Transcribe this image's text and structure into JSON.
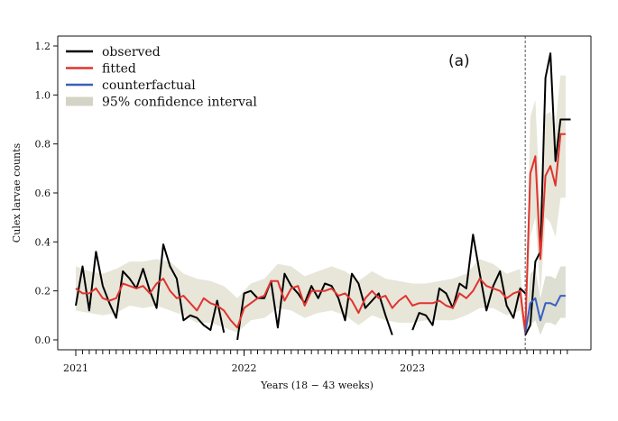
{
  "chart_data": {
    "type": "line",
    "panel_label": "(a)",
    "xlabel": "Years (18 − 43 weeks)",
    "ylabel": "Culex larvae counts",
    "ylim": [
      0,
      1.2
    ],
    "xlim": [
      2021.0,
      2023.98
    ],
    "yticks": [
      0.0,
      0.2,
      0.4,
      0.6,
      0.8,
      1.0,
      1.2
    ],
    "ytick_labels": [
      "0.0",
      "0.2",
      "0.4",
      "0.6",
      "0.8",
      "1.0",
      "1.2"
    ],
    "xticks": [
      2021,
      2022,
      2023
    ],
    "xtick_labels": [
      "2021",
      "2022",
      "2023"
    ],
    "intervention_x": 2023.67,
    "legend": {
      "position": "top-left",
      "entries": [
        {
          "label": "observed",
          "color": "#000000",
          "kind": "line"
        },
        {
          "label": "fitted",
          "color": "#e0332e",
          "kind": "line"
        },
        {
          "label": "counterfactual",
          "color": "#3a5fbf",
          "kind": "line"
        },
        {
          "label": "95% confidence interval",
          "color": "#d4d4c6",
          "kind": "band"
        }
      ]
    },
    "series": [
      {
        "name": "observed",
        "color": "#000000",
        "segments": [
          {
            "x": [
              2021.0,
              2021.04,
              2021.08,
              2021.12,
              2021.16,
              2021.2,
              2021.24,
              2021.28,
              2021.32,
              2021.36,
              2021.4,
              2021.44,
              2021.48,
              2021.52,
              2021.56,
              2021.6,
              2021.64,
              2021.68,
              2021.72,
              2021.76,
              2021.8,
              2021.84,
              2021.88
            ],
            "y": [
              0.14,
              0.3,
              0.12,
              0.36,
              0.22,
              0.15,
              0.09,
              0.28,
              0.25,
              0.21,
              0.29,
              0.2,
              0.13,
              0.39,
              0.3,
              0.25,
              0.08,
              0.1,
              0.09,
              0.06,
              0.04,
              0.16,
              0.03
            ]
          },
          {
            "x": [
              2021.96,
              2022.0,
              2022.04,
              2022.08,
              2022.12,
              2022.16,
              2022.2,
              2022.24,
              2022.28,
              2022.32,
              2022.36,
              2022.4,
              2022.44,
              2022.48,
              2022.52,
              2022.56,
              2022.6,
              2022.64,
              2022.68,
              2022.72,
              2022.76,
              2022.8,
              2022.84,
              2022.88
            ],
            "y": [
              0.0,
              0.19,
              0.2,
              0.17,
              0.17,
              0.24,
              0.05,
              0.27,
              0.22,
              0.19,
              0.15,
              0.22,
              0.17,
              0.23,
              0.22,
              0.17,
              0.08,
              0.27,
              0.23,
              0.13,
              0.16,
              0.19,
              0.1,
              0.02
            ]
          },
          {
            "x": [
              2023.0,
              2023.04,
              2023.08,
              2023.12,
              2023.16,
              2023.2,
              2023.24,
              2023.28,
              2023.32,
              2023.36,
              2023.4,
              2023.44,
              2023.48,
              2023.52,
              2023.56,
              2023.6,
              2023.64,
              2023.67
            ],
            "y": [
              0.04,
              0.11,
              0.1,
              0.06,
              0.21,
              0.19,
              0.13,
              0.23,
              0.21,
              0.43,
              0.27,
              0.12,
              0.22,
              0.28,
              0.14,
              0.09,
              0.21,
              0.19
            ]
          },
          {
            "x": [
              2023.67,
              2023.7,
              2023.73,
              2023.76,
              2023.79,
              2023.82,
              2023.85,
              2023.88,
              2023.91,
              2023.94
            ],
            "y": [
              0.02,
              0.06,
              0.32,
              0.36,
              1.07,
              1.17,
              0.73,
              0.9,
              0.9,
              0.9
            ]
          }
        ]
      },
      {
        "name": "fitted",
        "color": "#e0332e",
        "x": [
          2021.0,
          2021.04,
          2021.08,
          2021.12,
          2021.16,
          2021.2,
          2021.24,
          2021.28,
          2021.32,
          2021.36,
          2021.4,
          2021.44,
          2021.48,
          2021.52,
          2021.56,
          2021.6,
          2021.64,
          2021.68,
          2021.72,
          2021.76,
          2021.8,
          2021.84,
          2021.88,
          2021.92,
          2021.96,
          2022.0,
          2022.04,
          2022.08,
          2022.12,
          2022.16,
          2022.2,
          2022.24,
          2022.28,
          2022.32,
          2022.36,
          2022.4,
          2022.44,
          2022.48,
          2022.52,
          2022.56,
          2022.6,
          2022.64,
          2022.68,
          2022.72,
          2022.76,
          2022.8,
          2022.84,
          2022.88,
          2022.92,
          2022.96,
          2023.0,
          2023.04,
          2023.08,
          2023.12,
          2023.16,
          2023.2,
          2023.24,
          2023.28,
          2023.32,
          2023.36,
          2023.4,
          2023.44,
          2023.48,
          2023.52,
          2023.56,
          2023.6,
          2023.64,
          2023.67,
          2023.7,
          2023.73,
          2023.76,
          2023.79,
          2023.82,
          2023.85,
          2023.88,
          2023.91
        ],
        "y": [
          0.21,
          0.19,
          0.19,
          0.21,
          0.17,
          0.16,
          0.17,
          0.23,
          0.22,
          0.21,
          0.22,
          0.19,
          0.23,
          0.25,
          0.2,
          0.17,
          0.18,
          0.15,
          0.12,
          0.17,
          0.15,
          0.14,
          0.12,
          0.08,
          0.05,
          0.13,
          0.15,
          0.17,
          0.18,
          0.24,
          0.24,
          0.16,
          0.21,
          0.22,
          0.14,
          0.2,
          0.2,
          0.2,
          0.21,
          0.18,
          0.19,
          0.16,
          0.11,
          0.17,
          0.2,
          0.17,
          0.18,
          0.13,
          0.16,
          0.18,
          0.14,
          0.15,
          0.15,
          0.15,
          0.16,
          0.14,
          0.13,
          0.19,
          0.17,
          0.2,
          0.25,
          0.22,
          0.21,
          0.2,
          0.17,
          0.19,
          0.2,
          0.03,
          0.68,
          0.75,
          0.33,
          0.67,
          0.71,
          0.63,
          0.84,
          0.84
        ]
      },
      {
        "name": "counterfactual",
        "color": "#3a5fbf",
        "x": [
          2023.67,
          2023.7,
          2023.73,
          2023.76,
          2023.79,
          2023.82,
          2023.85,
          2023.88,
          2023.91
        ],
        "y": [
          0.03,
          0.15,
          0.17,
          0.08,
          0.15,
          0.15,
          0.14,
          0.18,
          0.18
        ]
      }
    ],
    "confidence_band": {
      "name": "95% confidence interval",
      "x": [
        2021.0,
        2021.08,
        2021.16,
        2021.24,
        2021.32,
        2021.4,
        2021.48,
        2021.56,
        2021.64,
        2021.72,
        2021.8,
        2021.88,
        2021.96,
        2022.04,
        2022.12,
        2022.2,
        2022.28,
        2022.36,
        2022.44,
        2022.52,
        2022.6,
        2022.68,
        2022.76,
        2022.84,
        2022.92,
        2023.0,
        2023.08,
        2023.16,
        2023.24,
        2023.32,
        2023.4,
        2023.48,
        2023.56,
        2023.64,
        2023.67,
        2023.7,
        2023.73,
        2023.76,
        2023.79,
        2023.82,
        2023.85,
        2023.88,
        2023.91
      ],
      "lower": [
        0.12,
        0.11,
        0.1,
        0.11,
        0.14,
        0.13,
        0.14,
        0.12,
        0.1,
        0.07,
        0.07,
        0.05,
        0.03,
        0.08,
        0.09,
        0.13,
        0.12,
        0.09,
        0.11,
        0.12,
        0.1,
        0.06,
        0.1,
        0.08,
        0.07,
        0.07,
        0.08,
        0.08,
        0.08,
        0.1,
        0.13,
        0.13,
        0.1,
        0.12,
        0.01,
        0.42,
        0.5,
        0.18,
        0.5,
        0.48,
        0.42,
        0.58,
        0.58
      ],
      "upper": [
        0.3,
        0.28,
        0.27,
        0.29,
        0.32,
        0.32,
        0.33,
        0.32,
        0.27,
        0.25,
        0.24,
        0.22,
        0.17,
        0.23,
        0.25,
        0.31,
        0.3,
        0.26,
        0.28,
        0.3,
        0.28,
        0.24,
        0.28,
        0.25,
        0.24,
        0.23,
        0.23,
        0.24,
        0.25,
        0.27,
        0.33,
        0.31,
        0.27,
        0.29,
        0.05,
        0.91,
        0.98,
        0.52,
        0.92,
        0.93,
        0.88,
        1.08,
        1.08
      ]
    },
    "counterfactual_band": {
      "x": [
        2023.67,
        2023.7,
        2023.73,
        2023.76,
        2023.79,
        2023.82,
        2023.85,
        2023.88,
        2023.91
      ],
      "lower": [
        0.01,
        0.06,
        0.08,
        0.02,
        0.07,
        0.07,
        0.06,
        0.09,
        0.09
      ],
      "upper": [
        0.05,
        0.27,
        0.29,
        0.17,
        0.26,
        0.26,
        0.25,
        0.3,
        0.3
      ]
    }
  }
}
